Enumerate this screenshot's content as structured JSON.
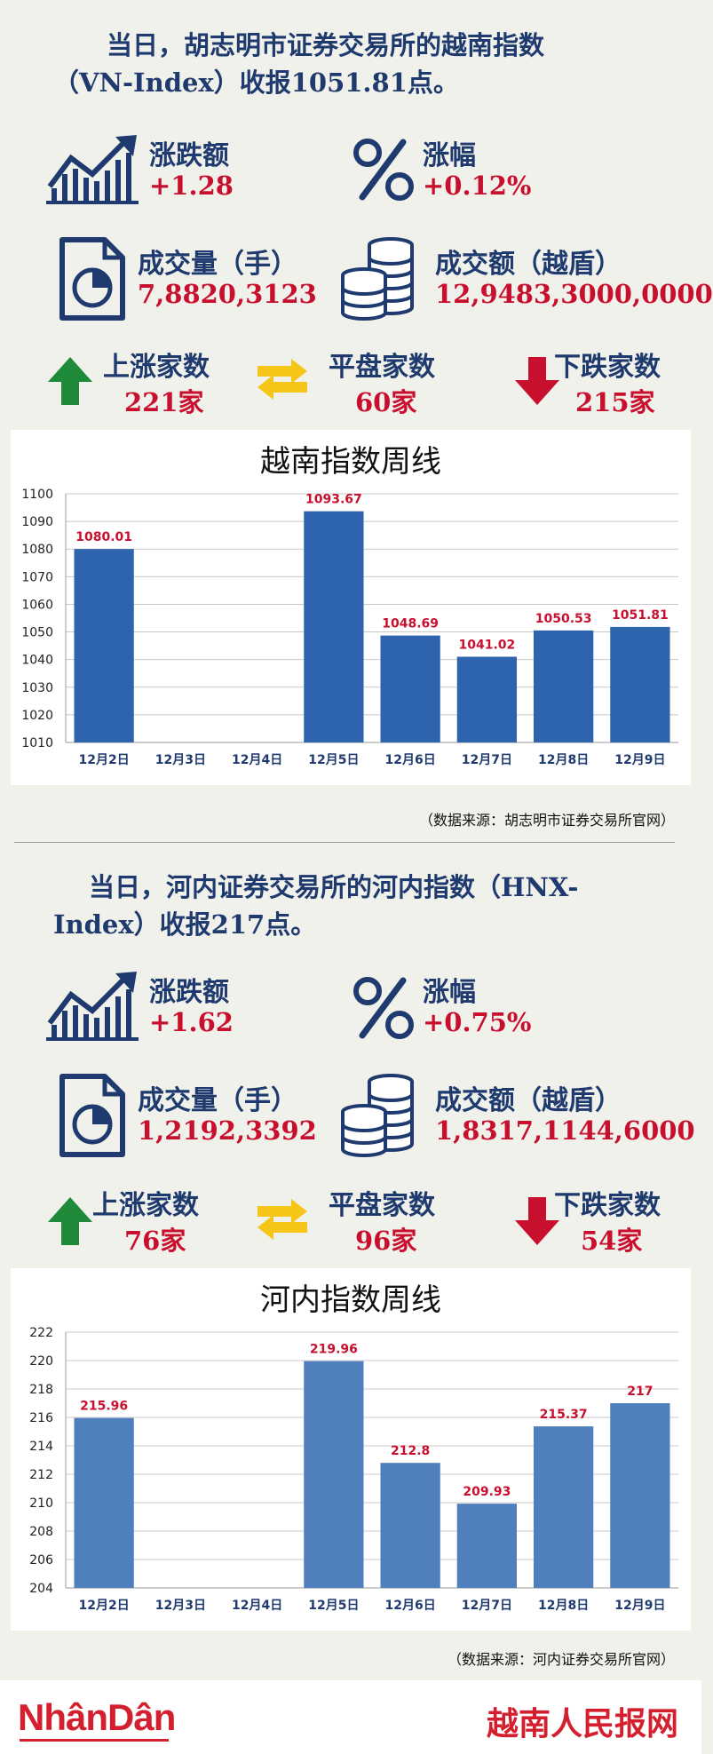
{
  "sections": [
    {
      "headline_line1": "当日，胡志明市证券交易所的越南指数",
      "headline_line2": "（VN-Index）收报1051.81点。",
      "change_label": "涨跌额",
      "change_value": "+1.28",
      "pct_label": "涨幅",
      "pct_value": "+0.12%",
      "volume_label": "成交量（手）",
      "volume_value": "7,8820,3123",
      "turnover_label": "成交额（越盾）",
      "turnover_value": "12,9483,3000,0000",
      "up_label": "上涨家数",
      "up_value": "221家",
      "flat_label": "平盘家数",
      "flat_value": "60家",
      "down_label": "下跌家数",
      "down_value": "215家",
      "chart_title": "越南指数周线",
      "source": "（数据来源：胡志明市证券交易所官网）"
    },
    {
      "headline_line1": "当日，河内证券交易所的河内指数（HNX-",
      "headline_line2": "Index）收报217点。",
      "change_label": "涨跌额",
      "change_value": "+1.62",
      "pct_label": "涨幅",
      "pct_value": "+0.75%",
      "volume_label": "成交量（手）",
      "volume_value": "1,2192,3392",
      "turnover_label": "成交额（越盾）",
      "turnover_value": "1,8317,1144,6000",
      "up_label": "上涨家数",
      "up_value": "76家",
      "flat_label": "平盘家数",
      "flat_value": "96家",
      "down_label": "下跌家数",
      "down_value": "54家",
      "chart_title": "河内指数周线",
      "source": "（数据来源：河内证券交易所官网）"
    }
  ],
  "chart_data": [
    {
      "type": "bar",
      "title": "越南指数周线",
      "categories": [
        "12月2日",
        "12月3日",
        "12月4日",
        "12月5日",
        "12月6日",
        "12月7日",
        "12月8日",
        "12月9日"
      ],
      "values": [
        1080.01,
        null,
        null,
        1093.67,
        1048.69,
        1041.02,
        1050.53,
        1051.81
      ],
      "labels": [
        "1080.01",
        "",
        "",
        "1093.67",
        "1048.69",
        "1041.02",
        "1050.53",
        "1051.81"
      ],
      "ylim": [
        1010,
        1100
      ],
      "yticks": [
        1010,
        1020,
        1030,
        1040,
        1050,
        1060,
        1070,
        1080,
        1090,
        1100
      ],
      "bar_color": "#2e63ad",
      "label_color": "#c8102e",
      "grid": true
    },
    {
      "type": "bar",
      "title": "河内指数周线",
      "categories": [
        "12月2日",
        "12月3日",
        "12月4日",
        "12月5日",
        "12月6日",
        "12月7日",
        "12月8日",
        "12月9日"
      ],
      "values": [
        215.96,
        null,
        null,
        219.96,
        212.8,
        209.93,
        215.37,
        217
      ],
      "labels": [
        "215.96",
        "",
        "",
        "219.96",
        "212.8",
        "209.93",
        "215.37",
        "217"
      ],
      "ylim": [
        204,
        222
      ],
      "yticks": [
        204,
        206,
        208,
        210,
        212,
        214,
        216,
        218,
        220,
        222
      ],
      "bar_color": "#4f7fbd",
      "label_color": "#c8102e",
      "grid": true
    }
  ],
  "footer": {
    "logo_text": "NhânDân",
    "brand_cn": "越南人民报网"
  },
  "colors": {
    "background": "#f1f1eb",
    "navy": "#1f3a6e",
    "red": "#c8102e",
    "green": "#1e8a3a",
    "yellow": "#f5c518"
  }
}
